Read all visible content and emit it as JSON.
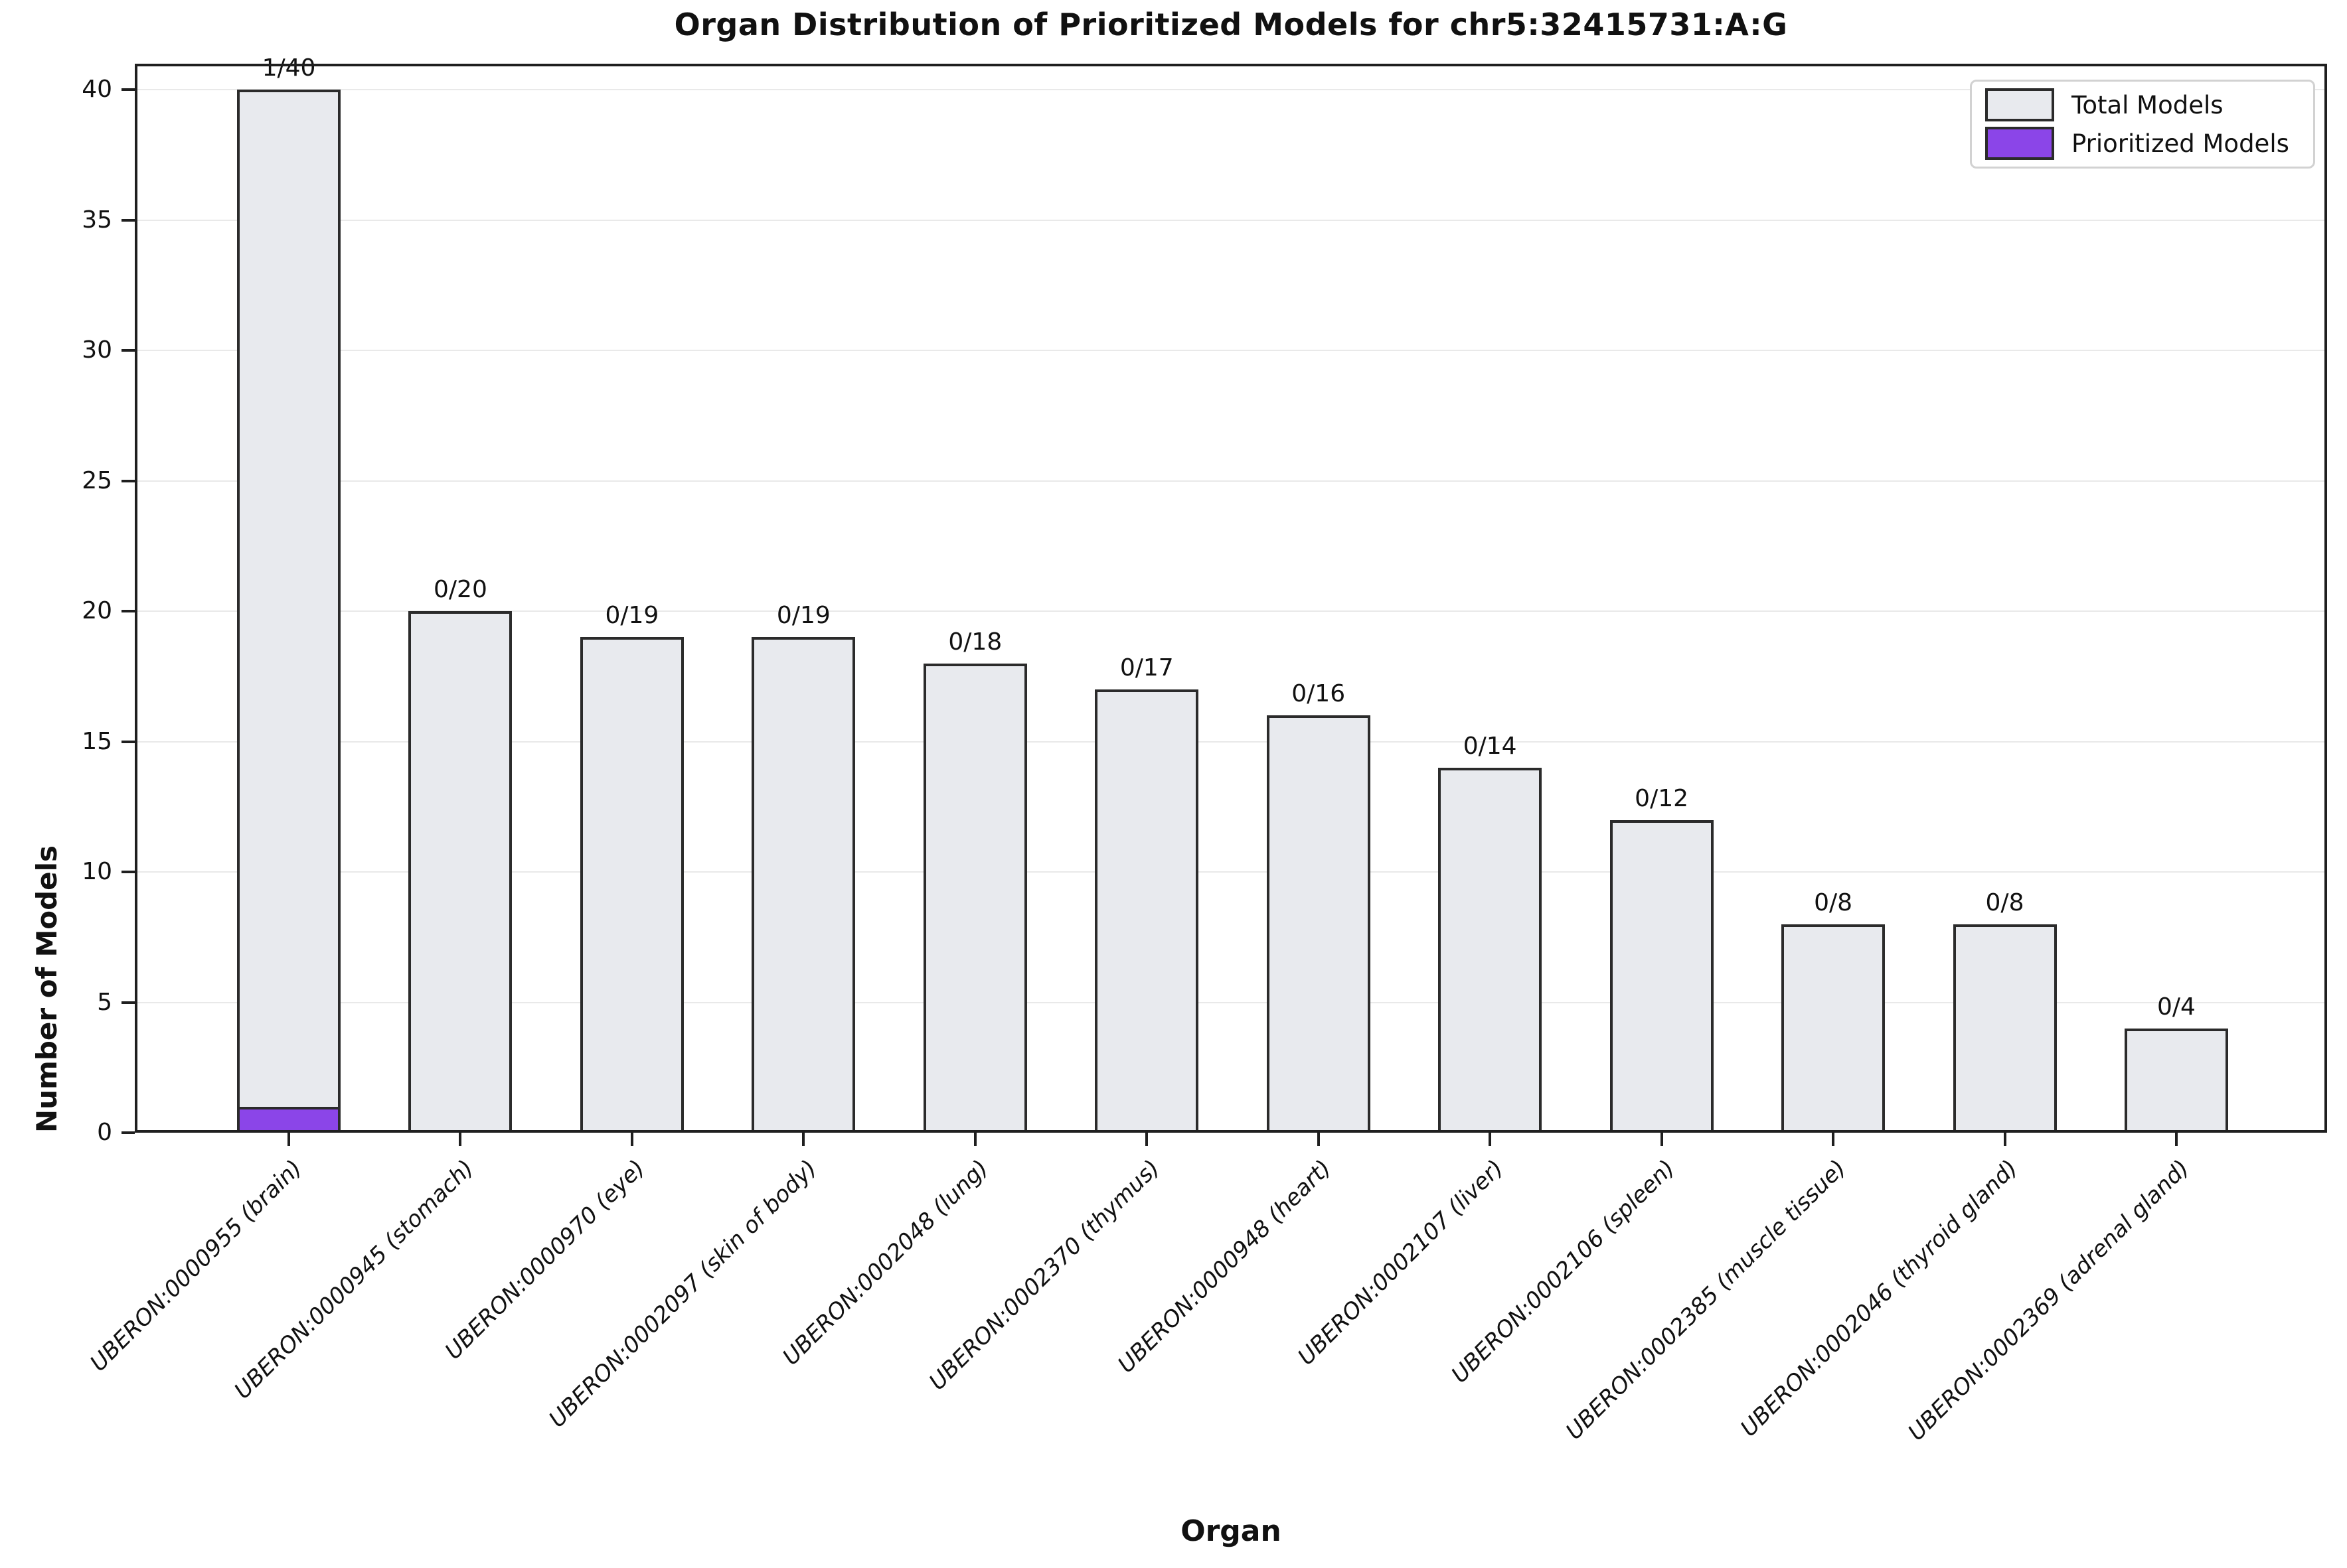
{
  "chart_data": {
    "type": "bar",
    "title": "Organ Distribution of Prioritized Models for chr5:32415731:A:G",
    "xlabel": "Organ",
    "ylabel": "Number of Models",
    "categories": [
      "UBERON:0000955 (brain)",
      "UBERON:0000945 (stomach)",
      "UBERON:0000970 (eye)",
      "UBERON:0002097 (skin of body)",
      "UBERON:0002048 (lung)",
      "UBERON:0002370 (thymus)",
      "UBERON:0000948 (heart)",
      "UBERON:0002107 (liver)",
      "UBERON:0002106 (spleen)",
      "UBERON:0002385 (muscle tissue)",
      "UBERON:0002046 (thyroid gland)",
      "UBERON:0002369 (adrenal gland)"
    ],
    "series": [
      {
        "name": "Total Models",
        "values": [
          40,
          20,
          19,
          19,
          18,
          17,
          16,
          14,
          12,
          8,
          8,
          4
        ],
        "color": "#e8eaee"
      },
      {
        "name": "Prioritized Models",
        "values": [
          1,
          0,
          0,
          0,
          0,
          0,
          0,
          0,
          0,
          0,
          0,
          0
        ],
        "color": "#8b45e8"
      }
    ],
    "bar_labels": [
      "1/40",
      "0/20",
      "0/19",
      "0/19",
      "0/18",
      "0/17",
      "0/16",
      "0/14",
      "0/12",
      "0/8",
      "0/8",
      "0/4"
    ],
    "yticks": [
      0,
      5,
      10,
      15,
      20,
      25,
      30,
      35,
      40
    ],
    "ylim": [
      0,
      41
    ],
    "grid": true,
    "legend_position": "upper right",
    "edge_color": "#2b2b2b",
    "grid_color": "#e9e9e9"
  },
  "legend": {
    "items": [
      {
        "label": "Total Models",
        "color": "#e8eaee"
      },
      {
        "label": "Prioritized Models",
        "color": "#8b45e8"
      }
    ]
  }
}
